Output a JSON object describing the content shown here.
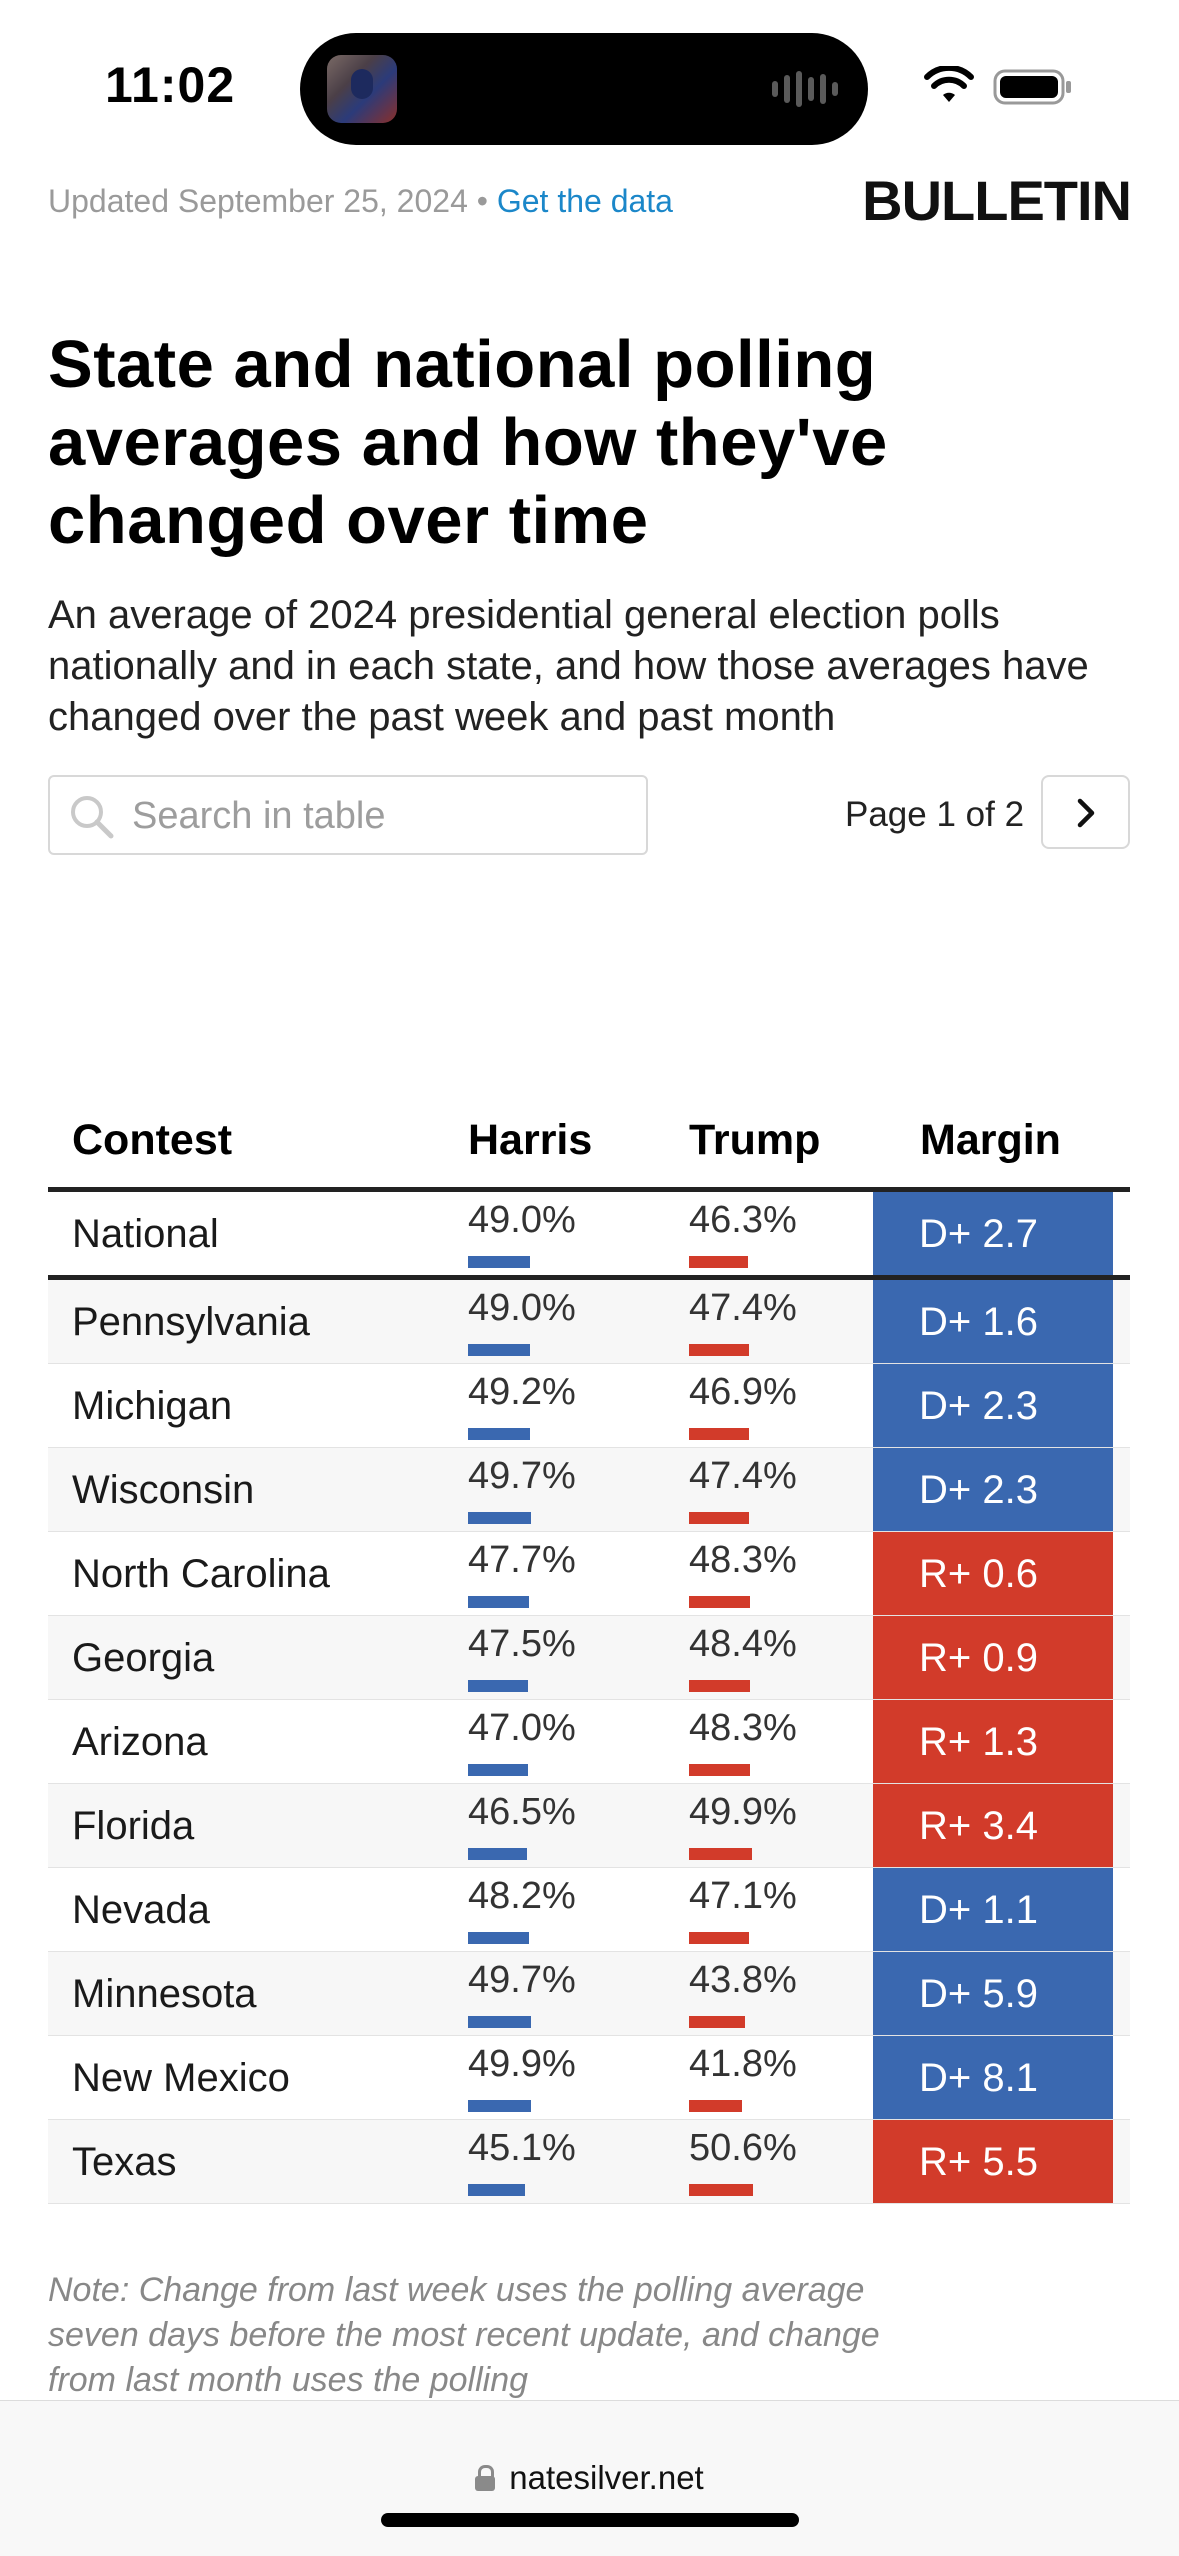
{
  "status_bar": {
    "time": "11:02"
  },
  "header": {
    "updated_text": "Updated September 25, 2024",
    "separator": " • ",
    "data_link": "Get the data",
    "brand": "BULLETIN"
  },
  "title": "State and national polling averages and how they've changed over time",
  "subtitle": "An average of 2024 presidential general election polls nationally and in each state, and how those averages have changed over the past week and past month",
  "search": {
    "placeholder": "Search in table"
  },
  "pagination": {
    "label": "Page 1 of 2"
  },
  "table": {
    "columns": [
      "Contest",
      "Harris",
      "Trump",
      "Margin"
    ],
    "rows": [
      {
        "contest": "National",
        "harris": "49.0%",
        "trump": "46.3%",
        "margin": "D+ 2.7",
        "party": "dem",
        "harris_value": 49.0,
        "trump_value": 46.3
      },
      {
        "contest": "Pennsylvania",
        "harris": "49.0%",
        "trump": "47.4%",
        "margin": "D+ 1.6",
        "party": "dem",
        "harris_value": 49.0,
        "trump_value": 47.4
      },
      {
        "contest": "Michigan",
        "harris": "49.2%",
        "trump": "46.9%",
        "margin": "D+ 2.3",
        "party": "dem",
        "harris_value": 49.2,
        "trump_value": 46.9
      },
      {
        "contest": "Wisconsin",
        "harris": "49.7%",
        "trump": "47.4%",
        "margin": "D+ 2.3",
        "party": "dem",
        "harris_value": 49.7,
        "trump_value": 47.4
      },
      {
        "contest": "North Carolina",
        "harris": "47.7%",
        "trump": "48.3%",
        "margin": "R+ 0.6",
        "party": "rep",
        "harris_value": 47.7,
        "trump_value": 48.3
      },
      {
        "contest": "Georgia",
        "harris": "47.5%",
        "trump": "48.4%",
        "margin": "R+ 0.9",
        "party": "rep",
        "harris_value": 47.5,
        "trump_value": 48.4
      },
      {
        "contest": "Arizona",
        "harris": "47.0%",
        "trump": "48.3%",
        "margin": "R+ 1.3",
        "party": "rep",
        "harris_value": 47.0,
        "trump_value": 48.3
      },
      {
        "contest": "Florida",
        "harris": "46.5%",
        "trump": "49.9%",
        "margin": "R+ 3.4",
        "party": "rep",
        "harris_value": 46.5,
        "trump_value": 49.9
      },
      {
        "contest": "Nevada",
        "harris": "48.2%",
        "trump": "47.1%",
        "margin": "D+ 1.1",
        "party": "dem",
        "harris_value": 48.2,
        "trump_value": 47.1
      },
      {
        "contest": "Minnesota",
        "harris": "49.7%",
        "trump": "43.8%",
        "margin": "D+ 5.9",
        "party": "dem",
        "harris_value": 49.7,
        "trump_value": 43.8
      },
      {
        "contest": "New Mexico",
        "harris": "49.9%",
        "trump": "41.8%",
        "margin": "D+ 8.1",
        "party": "dem",
        "harris_value": 49.9,
        "trump_value": 41.8
      },
      {
        "contest": "Texas",
        "harris": "45.1%",
        "trump": "50.6%",
        "margin": "R+ 5.5",
        "party": "rep",
        "harris_value": 45.1,
        "trump_value": 50.6
      }
    ]
  },
  "note": "Note: Change from last week uses the polling average seven days before the most recent update, and change from last month uses the polling",
  "url_bar": {
    "domain": "natesilver.net"
  },
  "colors": {
    "dem": "#3a68b0",
    "rep": "#d23b2a",
    "link": "#1b87c9"
  }
}
